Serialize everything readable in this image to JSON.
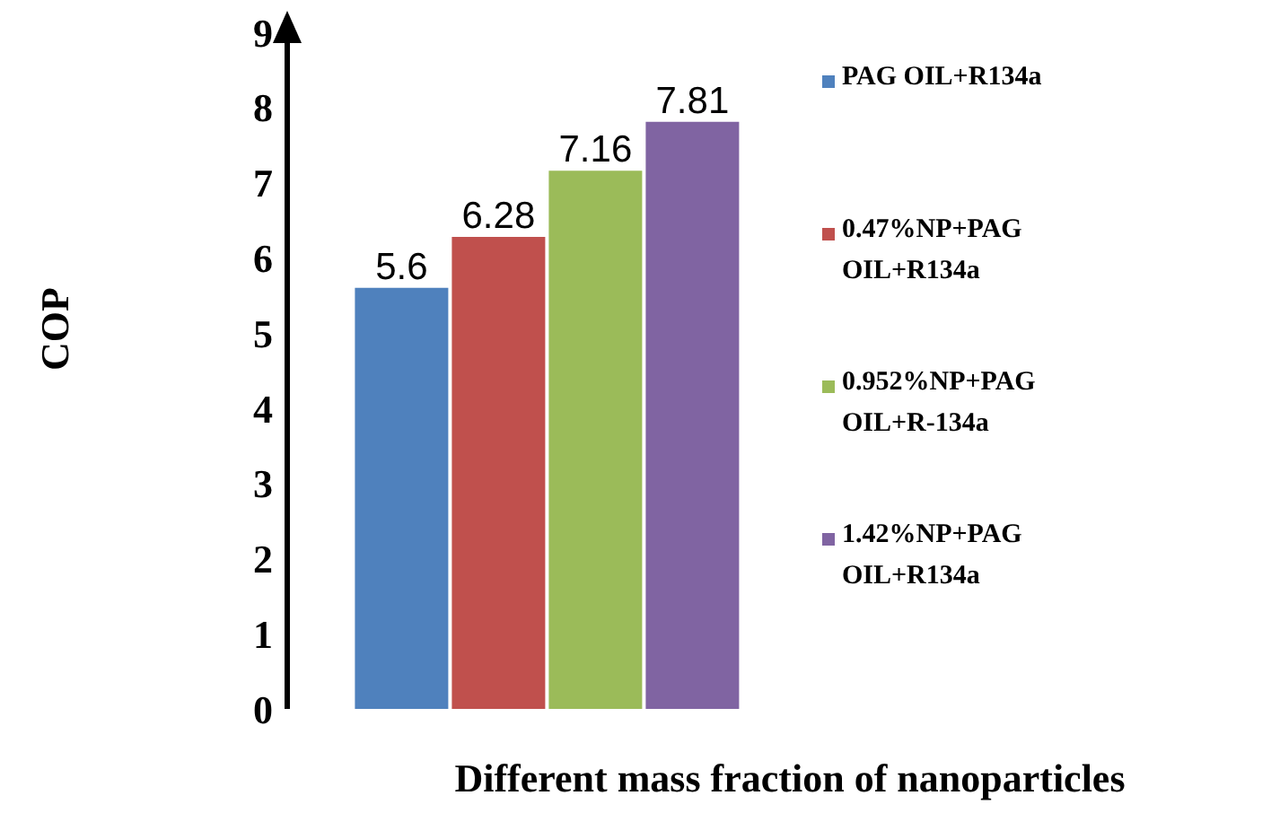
{
  "chart_data": {
    "type": "bar",
    "xlabel": "Different mass fraction of nanoparticles",
    "ylabel": "COP",
    "categories": [
      null
    ],
    "series": [
      {
        "name": "PAG OIL+R134a",
        "color": "#4f81bd",
        "values": [
          5.6
        ]
      },
      {
        "name": "0.47%NP+PAG OIL+R134a",
        "color": "#c0504d",
        "values": [
          6.28
        ]
      },
      {
        "name": "0.952%NP+PAG OIL+R-134a",
        "color": "#9bbb59",
        "values": [
          7.16
        ]
      },
      {
        "name": "1.42%NP+PAG OIL+R134a",
        "color": "#8064a2",
        "values": [
          7.81
        ]
      }
    ],
    "ylim": [
      0,
      9
    ],
    "yticks": [
      0,
      1,
      2,
      3,
      4,
      5,
      6,
      7,
      8,
      9
    ],
    "grid": false,
    "legend": "right",
    "data_labels": true
  }
}
